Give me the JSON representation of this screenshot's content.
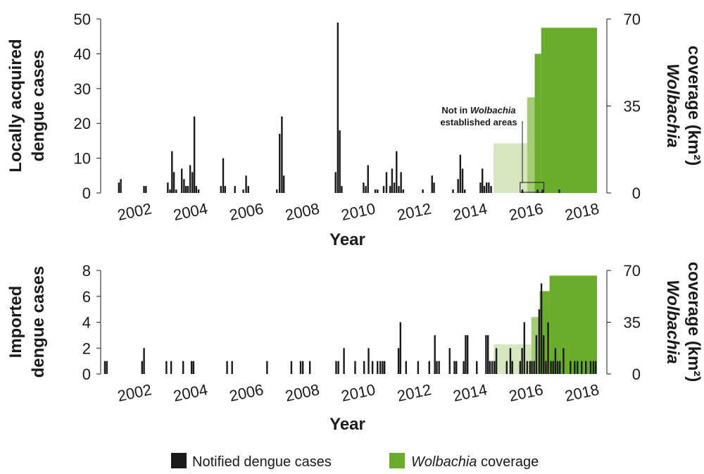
{
  "colors": {
    "cases": "#1a1a1a",
    "coverage_light": "#d6e7bf",
    "coverage_mid": "#a3cc73",
    "coverage_dark": "#6aad2c",
    "axis": "#1a1a1a"
  },
  "chart_data": [
    {
      "type": "bar",
      "id": "local",
      "ylabel_lines": [
        "Locally acquired",
        "dengue cases"
      ],
      "y2label_lines": [
        "Wolbachia",
        "coverage (km²)"
      ],
      "xlabel": "Year",
      "ylim": [
        0,
        50
      ],
      "yticks": [
        0,
        10,
        20,
        30,
        40,
        50
      ],
      "y2lim": [
        0,
        70
      ],
      "y2ticks": [
        0,
        35,
        70
      ],
      "xlim": [
        2000.9,
        2019
      ],
      "xticks": [
        "2002",
        "2004",
        "2006",
        "2008",
        "2010",
        "2012",
        "2014",
        "2016",
        "2018"
      ],
      "annotation": {
        "line1": "Not in Wolbachia",
        "line2": "established areas"
      },
      "cases": [
        [
          2001.55,
          3
        ],
        [
          2001.62,
          4
        ],
        [
          2002.45,
          2
        ],
        [
          2002.52,
          2
        ],
        [
          2003.3,
          3
        ],
        [
          2003.38,
          1
        ],
        [
          2003.45,
          12
        ],
        [
          2003.52,
          6
        ],
        [
          2003.6,
          1
        ],
        [
          2003.8,
          7
        ],
        [
          2003.88,
          4
        ],
        [
          2003.95,
          2
        ],
        [
          2004.02,
          2
        ],
        [
          2004.1,
          8
        ],
        [
          2004.18,
          6
        ],
        [
          2004.25,
          22
        ],
        [
          2004.32,
          2
        ],
        [
          2004.4,
          1
        ],
        [
          2005.2,
          2
        ],
        [
          2005.28,
          10
        ],
        [
          2005.35,
          2
        ],
        [
          2005.7,
          2
        ],
        [
          2006.0,
          1
        ],
        [
          2006.1,
          5
        ],
        [
          2006.18,
          2
        ],
        [
          2007.2,
          1
        ],
        [
          2007.3,
          17
        ],
        [
          2007.38,
          22
        ],
        [
          2007.45,
          5
        ],
        [
          2009.3,
          6
        ],
        [
          2009.38,
          49
        ],
        [
          2009.45,
          18
        ],
        [
          2009.52,
          2
        ],
        [
          2010.3,
          3
        ],
        [
          2010.38,
          2
        ],
        [
          2010.46,
          8
        ],
        [
          2010.72,
          1
        ],
        [
          2010.8,
          1
        ],
        [
          2011.02,
          2
        ],
        [
          2011.12,
          6
        ],
        [
          2011.25,
          2
        ],
        [
          2011.32,
          7
        ],
        [
          2011.4,
          3
        ],
        [
          2011.48,
          12
        ],
        [
          2011.56,
          2
        ],
        [
          2011.64,
          6
        ],
        [
          2011.72,
          1
        ],
        [
          2012.42,
          1
        ],
        [
          2012.75,
          5
        ],
        [
          2012.82,
          3
        ],
        [
          2013.5,
          1
        ],
        [
          2013.68,
          4
        ],
        [
          2013.76,
          11
        ],
        [
          2013.84,
          7
        ],
        [
          2013.92,
          1
        ],
        [
          2014.48,
          3
        ],
        [
          2014.55,
          7
        ],
        [
          2014.62,
          2
        ],
        [
          2014.7,
          3
        ],
        [
          2014.78,
          3
        ],
        [
          2014.86,
          2
        ],
        [
          2015.98,
          1
        ],
        [
          2016.52,
          1
        ],
        [
          2016.7,
          1
        ],
        [
          2017.3,
          1
        ]
      ],
      "coverage": [
        {
          "x0": 2014.95,
          "x1": 2016.15,
          "value": 20,
          "shade": "light"
        },
        {
          "x0": 2016.15,
          "x1": 2016.42,
          "value": 38.5,
          "shade": "mid"
        },
        {
          "x0": 2016.42,
          "x1": 2016.65,
          "value": 56,
          "shade": "dark"
        },
        {
          "x0": 2016.65,
          "x1": 2018.65,
          "value": 66.5,
          "shade": "dark"
        }
      ]
    },
    {
      "type": "bar",
      "id": "imported",
      "ylabel_lines": [
        "Imported",
        "dengue cases"
      ],
      "y2label_lines": [
        "Wolbachia",
        "coverage (km²)"
      ],
      "xlabel": "Year",
      "ylim": [
        0,
        8
      ],
      "yticks": [
        0,
        2,
        4,
        6,
        8
      ],
      "y2lim": [
        0,
        70
      ],
      "y2ticks": [
        0,
        35,
        70
      ],
      "xlim": [
        2000.9,
        2019
      ],
      "xticks": [
        "2002",
        "2004",
        "2006",
        "2008",
        "2010",
        "2012",
        "2014",
        "2016",
        "2018"
      ],
      "cases": [
        [
          2001.05,
          1
        ],
        [
          2001.12,
          1
        ],
        [
          2002.38,
          1
        ],
        [
          2002.45,
          2
        ],
        [
          2003.25,
          1
        ],
        [
          2003.42,
          1
        ],
        [
          2003.85,
          1
        ],
        [
          2004.15,
          1
        ],
        [
          2004.22,
          1
        ],
        [
          2005.42,
          1
        ],
        [
          2005.6,
          1
        ],
        [
          2006.85,
          1
        ],
        [
          2007.72,
          1
        ],
        [
          2008.05,
          1
        ],
        [
          2008.13,
          1
        ],
        [
          2008.38,
          1
        ],
        [
          2009.32,
          1
        ],
        [
          2009.4,
          1
        ],
        [
          2009.6,
          2
        ],
        [
          2010.0,
          1
        ],
        [
          2010.32,
          1
        ],
        [
          2010.48,
          2
        ],
        [
          2010.62,
          1
        ],
        [
          2010.8,
          1
        ],
        [
          2010.9,
          1
        ],
        [
          2010.98,
          1
        ],
        [
          2011.05,
          1
        ],
        [
          2011.55,
          2
        ],
        [
          2011.62,
          4
        ],
        [
          2011.82,
          1
        ],
        [
          2012.25,
          1
        ],
        [
          2012.65,
          1
        ],
        [
          2012.85,
          3
        ],
        [
          2012.92,
          1
        ],
        [
          2013.0,
          1
        ],
        [
          2013.38,
          2
        ],
        [
          2013.55,
          1
        ],
        [
          2013.62,
          1
        ],
        [
          2013.88,
          1
        ],
        [
          2013.95,
          3
        ],
        [
          2014.02,
          3
        ],
        [
          2014.35,
          1
        ],
        [
          2014.68,
          3
        ],
        [
          2014.75,
          3
        ],
        [
          2014.82,
          1
        ],
        [
          2014.9,
          1
        ],
        [
          2014.98,
          1
        ],
        [
          2015.05,
          2
        ],
        [
          2015.42,
          1
        ],
        [
          2015.55,
          2
        ],
        [
          2015.62,
          1
        ],
        [
          2015.9,
          1
        ],
        [
          2015.97,
          2
        ],
        [
          2016.05,
          4
        ],
        [
          2016.15,
          1
        ],
        [
          2016.25,
          1
        ],
        [
          2016.32,
          1
        ],
        [
          2016.4,
          1
        ],
        [
          2016.48,
          3
        ],
        [
          2016.58,
          5
        ],
        [
          2016.66,
          7
        ],
        [
          2016.74,
          3
        ],
        [
          2016.82,
          1
        ],
        [
          2016.9,
          4
        ],
        [
          2017.0,
          1
        ],
        [
          2017.08,
          1
        ],
        [
          2017.16,
          2
        ],
        [
          2017.24,
          1
        ],
        [
          2017.32,
          1
        ],
        [
          2017.45,
          2
        ],
        [
          2017.7,
          1
        ],
        [
          2017.85,
          1
        ],
        [
          2017.95,
          1
        ],
        [
          2018.1,
          1
        ],
        [
          2018.25,
          1
        ],
        [
          2018.42,
          1
        ],
        [
          2018.52,
          1
        ],
        [
          2018.6,
          1
        ]
      ],
      "coverage": [
        {
          "x0": 2014.95,
          "x1": 2016.3,
          "value": 20,
          "shade": "light"
        },
        {
          "x0": 2016.3,
          "x1": 2016.6,
          "value": 38.5,
          "shade": "mid"
        },
        {
          "x0": 2016.6,
          "x1": 2016.95,
          "value": 56,
          "shade": "dark"
        },
        {
          "x0": 2016.95,
          "x1": 2018.65,
          "value": 66.5,
          "shade": "dark"
        }
      ]
    }
  ],
  "legend": {
    "cases_label": "Notified dengue cases",
    "coverage_label_italic": "Wolbachia",
    "coverage_label_rest": " coverage"
  }
}
